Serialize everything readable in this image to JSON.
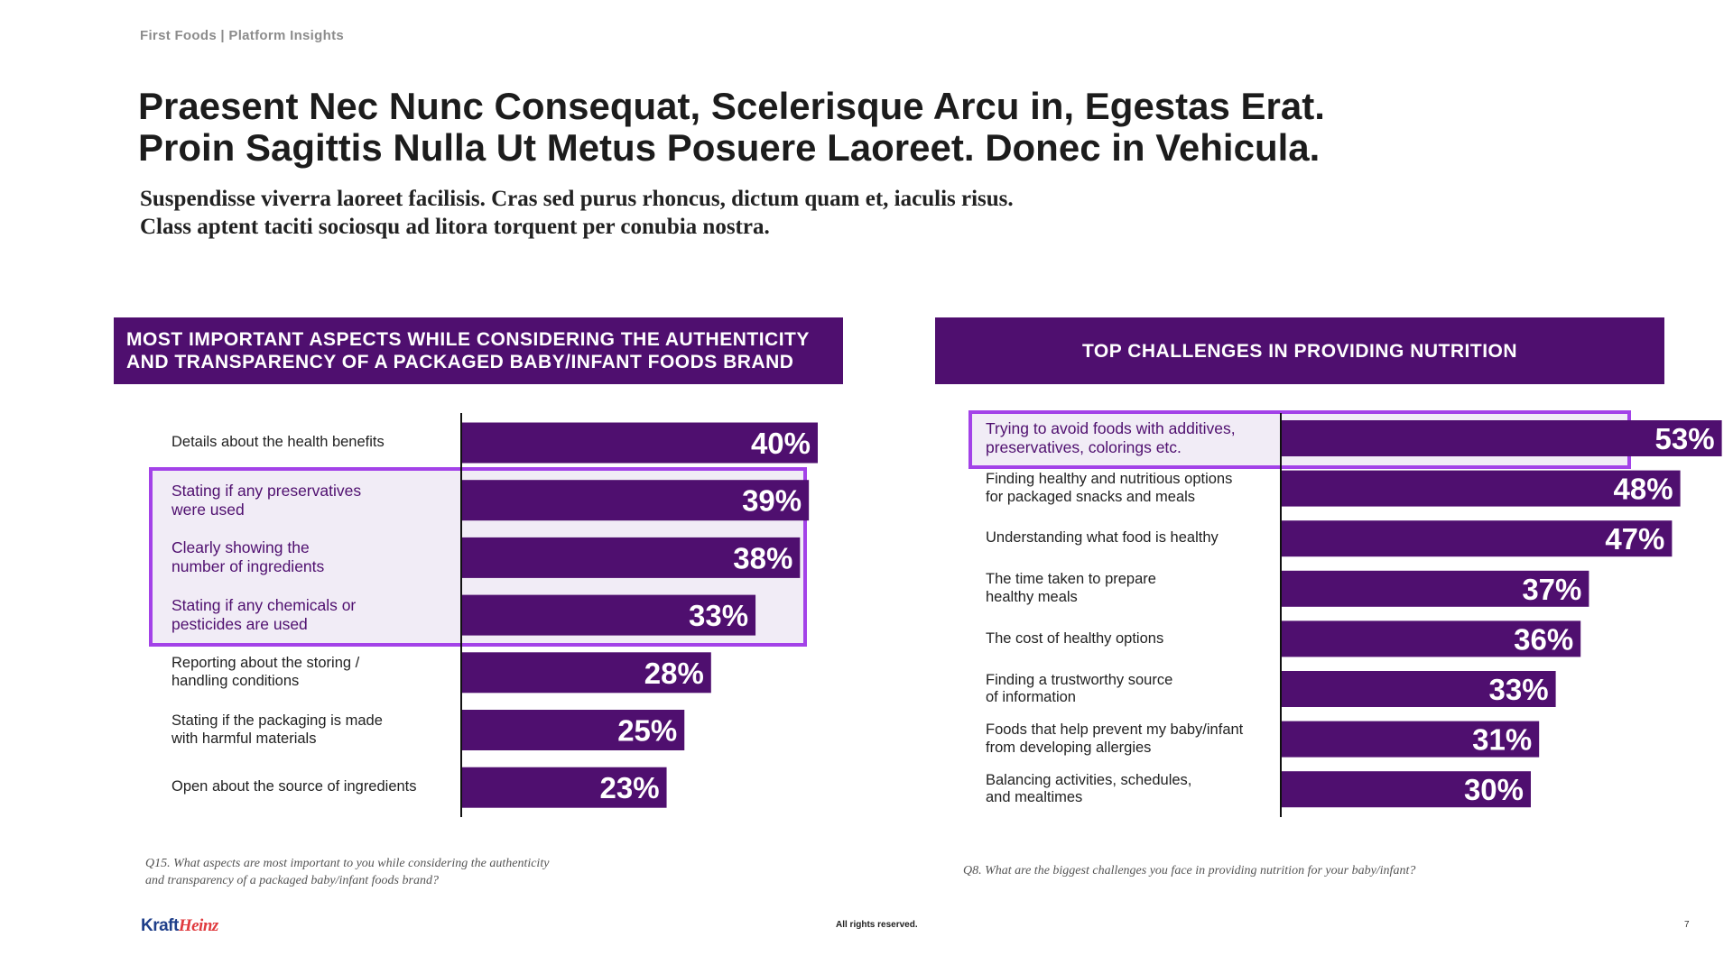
{
  "header_label": "First Foods | Platform Insights",
  "title_lines": [
    "Praesent Nec Nunc Consequat, Scelerisque Arcu in, Egestas Erat.",
    "Proin Sagittis Nulla Ut Metus Posuere Laoreet. Donec in Vehicula."
  ],
  "subtitle_lines": [
    "Suspendisse viverra laoreet facilisis. Cras sed purus rhoncus, dictum quam et, iaculis risus.",
    "Class aptent taciti sociosqu ad litora torquent per conubia nostra."
  ],
  "colors": {
    "bar": "#4f0f6f",
    "highlight_border": "#a342e8",
    "highlight_fill": "#f1ecf6"
  },
  "chart_data": [
    {
      "type": "bar",
      "orientation": "horizontal",
      "title_lines": [
        "MOST IMPORTANT ASPECTS WHILE CONSIDERING THE AUTHENTICITY",
        "AND TRANSPARENCY OF A PACKAGED BABY/INFANT FOODS BRAND"
      ],
      "categories": [
        "Details about the health benefits",
        "Stating if any preservatives\nwere used",
        "Clearly showing the\nnumber of ingredients",
        "Stating if any chemicals or\npesticides are used",
        "Reporting about the storing /\nhandling conditions",
        "Stating if the packaging is made\nwith harmful materials",
        "Open about the source of ingredients"
      ],
      "values": [
        40,
        39,
        38,
        33,
        28,
        25,
        23
      ],
      "value_labels": [
        "40%",
        "39%",
        "38%",
        "33%",
        "28%",
        "25%",
        "23%"
      ],
      "highlighted_indices": [
        1,
        2,
        3
      ],
      "footnote_lines": [
        "Q15. What aspects are most important to you while considering the authenticity",
        "and transparency of a packaged baby/infant foods brand?"
      ]
    },
    {
      "type": "bar",
      "orientation": "horizontal",
      "title_lines": [
        "TOP CHALLENGES IN PROVIDING NUTRITION"
      ],
      "categories": [
        "Trying to avoid foods with additives,\npreservatives, colorings etc.",
        "Finding healthy and nutritious options\nfor packaged snacks and meals",
        "Understanding what food is healthy",
        "The time taken to prepare\nhealthy meals",
        "The cost of healthy options",
        "Finding a trustworthy source\nof information",
        "Foods that help prevent my baby/infant\nfrom developing allergies",
        "Balancing activities, schedules,\nand mealtimes"
      ],
      "values": [
        53,
        48,
        47,
        37,
        36,
        33,
        31,
        30
      ],
      "value_labels": [
        "53%",
        "48%",
        "47%",
        "37%",
        "36%",
        "33%",
        "31%",
        "30%"
      ],
      "highlighted_indices": [
        0
      ],
      "footnote_lines": [
        "Q8. What are the biggest challenges you face in providing nutrition for your baby/infant?"
      ]
    }
  ],
  "footer": {
    "logo_text_1": "Kraft",
    "logo_text_2": "Heinz",
    "rights": "All rights reserved.",
    "page_number": "7"
  }
}
